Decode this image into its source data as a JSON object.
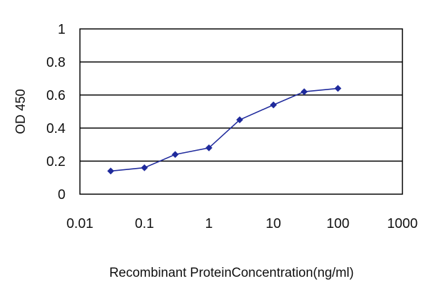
{
  "chart_data": {
    "type": "line",
    "title": "",
    "xlabel": "Recombinant ProteinConcentration(ng/ml)",
    "ylabel": "OD 450",
    "x_scale": "log",
    "xlim": [
      0.01,
      1000
    ],
    "ylim": [
      0,
      1
    ],
    "x_ticks": [
      "0.01",
      "0.1",
      "1",
      "10",
      "100",
      "1000"
    ],
    "x_tick_values": [
      0.01,
      0.1,
      1,
      10,
      100,
      1000
    ],
    "y_ticks": [
      "0",
      "0.2",
      "0.4",
      "0.6",
      "0.8",
      "1"
    ],
    "y_tick_values": [
      0,
      0.2,
      0.4,
      0.6,
      0.8,
      1
    ],
    "grid": "horizontal",
    "legend": "none",
    "series": [
      {
        "x": [
          0.03,
          0.1,
          0.3,
          1,
          3,
          10,
          30,
          100
        ],
        "y": [
          0.14,
          0.16,
          0.24,
          0.28,
          0.45,
          0.54,
          0.62,
          0.64
        ],
        "color": "#1f2a9c"
      }
    ],
    "colors": {
      "plot_background": "#ffffff",
      "gridline": "#000000",
      "marker": "#1f2a9c"
    }
  }
}
